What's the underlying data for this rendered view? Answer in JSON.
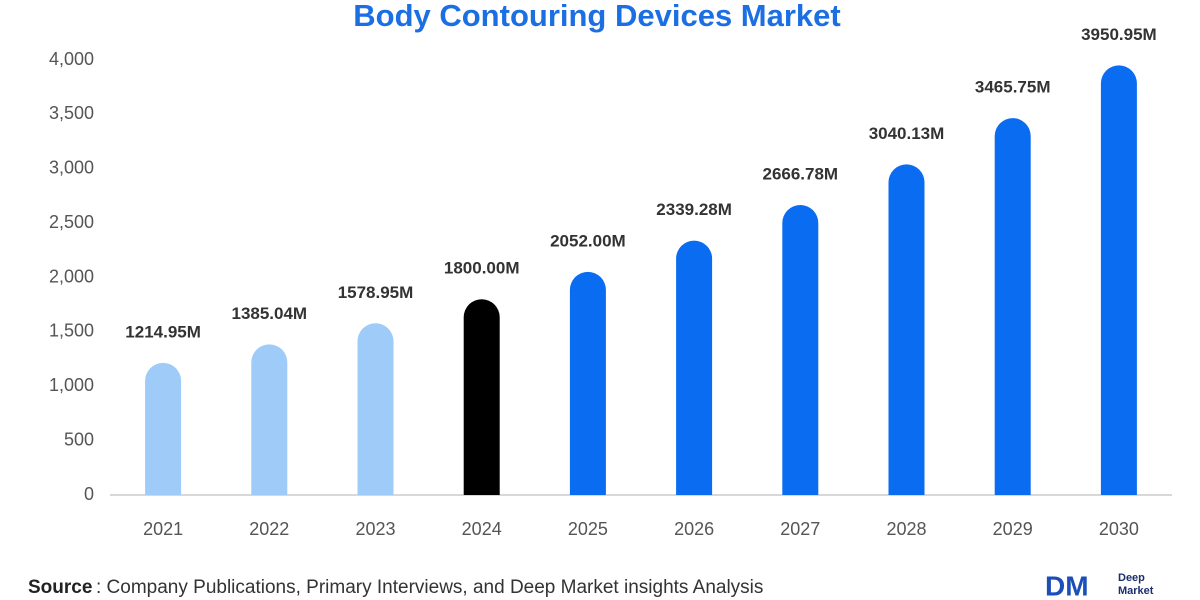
{
  "chart_data": {
    "type": "bar",
    "title": "Body Contouring Devices Market",
    "categories": [
      "2021",
      "2022",
      "2023",
      "2024",
      "2025",
      "2026",
      "2027",
      "2028",
      "2029",
      "2030"
    ],
    "values": [
      1214.95,
      1385.04,
      1578.95,
      1800.0,
      2052.0,
      2339.28,
      2666.78,
      3040.13,
      3465.75,
      3950.95
    ],
    "value_labels": [
      "1214.95M",
      "1385.04M",
      "1578.95M",
      "1800.00M",
      "2052.00M",
      "2339.28M",
      "2666.78M",
      "3040.13M",
      "3465.75M",
      "3950.95M"
    ],
    "colors": [
      "#9ecbf7",
      "#9ecbf7",
      "#9ecbf7",
      "#000000",
      "#0a6cf0",
      "#0a6cf0",
      "#0a6cf0",
      "#0a6cf0",
      "#0a6cf0",
      "#0a6cf0"
    ],
    "ylim": [
      0,
      4000
    ],
    "yticks": [
      0,
      500,
      {
        "value": 1000,
        "label": "1,000"
      },
      {
        "value": 1500,
        "label": "1,500"
      },
      {
        "value": 2000,
        "label": "2,000"
      },
      {
        "value": 2500,
        "label": "2,500"
      },
      {
        "value": 3000,
        "label": "3,000"
      },
      {
        "value": 3500,
        "label": "3,500"
      },
      {
        "value": 4000,
        "label": "4,000"
      }
    ],
    "grid": false
  },
  "source": {
    "label": "Source",
    "text": ": Company Publications, Primary Interviews, and Deep Market insights Analysis"
  },
  "logo": {
    "mark": "DM",
    "line1": "Deep",
    "line2": "Market"
  }
}
